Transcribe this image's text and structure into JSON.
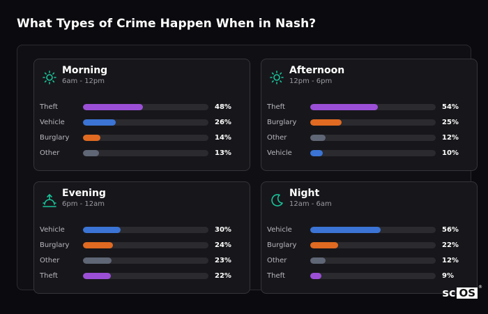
{
  "page": {
    "title": "What Types of Crime Happen When in Nash?"
  },
  "colors": {
    "Theft": "#9b4fd6",
    "Vehicle": "#3b74d4",
    "Burglary": "#e06a21",
    "Other": "#5f6675",
    "icon_accent": "#19c49a"
  },
  "cards": [
    {
      "title": "Morning",
      "subtitle": "6am - 12pm",
      "icon": "sun-icon",
      "rows": [
        {
          "label": "Theft",
          "value": "48%",
          "pct": 48
        },
        {
          "label": "Vehicle",
          "value": "26%",
          "pct": 26
        },
        {
          "label": "Burglary",
          "value": "14%",
          "pct": 14
        },
        {
          "label": "Other",
          "value": "13%",
          "pct": 13
        }
      ]
    },
    {
      "title": "Afternoon",
      "subtitle": "12pm - 6pm",
      "icon": "sun-icon",
      "rows": [
        {
          "label": "Theft",
          "value": "54%",
          "pct": 54
        },
        {
          "label": "Burglary",
          "value": "25%",
          "pct": 25
        },
        {
          "label": "Other",
          "value": "12%",
          "pct": 12
        },
        {
          "label": "Vehicle",
          "value": "10%",
          "pct": 10
        }
      ]
    },
    {
      "title": "Evening",
      "subtitle": "6pm - 12am",
      "icon": "sunset-icon",
      "rows": [
        {
          "label": "Vehicle",
          "value": "30%",
          "pct": 30
        },
        {
          "label": "Burglary",
          "value": "24%",
          "pct": 24
        },
        {
          "label": "Other",
          "value": "23%",
          "pct": 23
        },
        {
          "label": "Theft",
          "value": "22%",
          "pct": 22
        }
      ]
    },
    {
      "title": "Night",
      "subtitle": "12am - 6am",
      "icon": "moon-icon",
      "rows": [
        {
          "label": "Vehicle",
          "value": "56%",
          "pct": 56
        },
        {
          "label": "Burglary",
          "value": "22%",
          "pct": 22
        },
        {
          "label": "Other",
          "value": "12%",
          "pct": 12
        },
        {
          "label": "Theft",
          "value": "9%",
          "pct": 9
        }
      ]
    }
  ],
  "logo": {
    "text": "scOS"
  }
}
